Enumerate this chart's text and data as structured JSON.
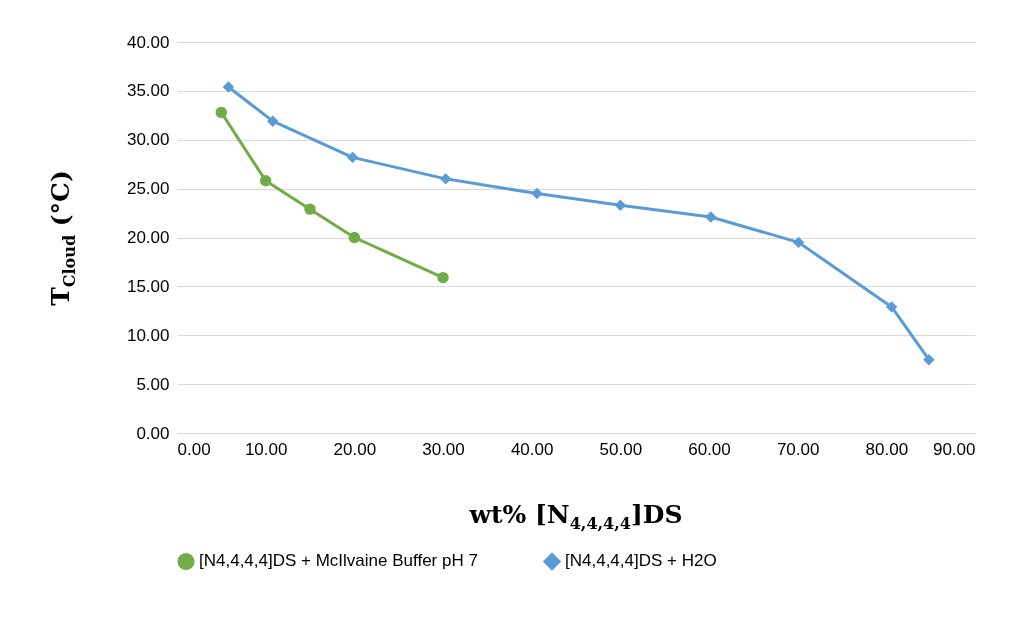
{
  "chart_data": {
    "type": "line",
    "xlabel": "wt% [N$_{4,4,4,4}$]DS",
    "ylabel": "T$_{Cloud}$  (°C)",
    "xlim": [
      0,
      90
    ],
    "ylim": [
      0,
      40
    ],
    "xticks": [
      {
        "value": 0,
        "label": "0.00"
      },
      {
        "value": 10,
        "label": "10.00"
      },
      {
        "value": 20,
        "label": "20.00"
      },
      {
        "value": 30,
        "label": "30.00"
      },
      {
        "value": 40,
        "label": "40.00"
      },
      {
        "value": 50,
        "label": "50.00"
      },
      {
        "value": 60,
        "label": "60.00"
      },
      {
        "value": 70,
        "label": "70.00"
      },
      {
        "value": 80,
        "label": "80.00"
      },
      {
        "value": 90,
        "label": "90.00"
      }
    ],
    "yticks": [
      {
        "value": 0,
        "label": "0.00"
      },
      {
        "value": 5,
        "label": "5.00"
      },
      {
        "value": 10,
        "label": "10.00"
      },
      {
        "value": 15,
        "label": "15.00"
      },
      {
        "value": 20,
        "label": "20.00"
      },
      {
        "value": 25,
        "label": "25.00"
      },
      {
        "value": 30,
        "label": "30.00"
      },
      {
        "value": 35,
        "label": "35.00"
      },
      {
        "value": 40,
        "label": "40.00"
      }
    ],
    "grid": "y",
    "legend": "bottom",
    "line_style": "solid",
    "series": [
      {
        "name": "[N4,4,4,4]DS + McIlvaine Buffer pH 7",
        "color": "#70ad47",
        "marker": "circle",
        "x": [
          5,
          10,
          15,
          20,
          30
        ],
        "values": [
          32.8,
          25.8,
          22.9,
          20.0,
          15.9
        ]
      },
      {
        "name": "[N4,4,4,4]DS + H2O",
        "color": "#5b9bd5",
        "marker": "diamond",
        "x": [
          5.8,
          10.8,
          19.8,
          30.3,
          40.6,
          50.0,
          60.2,
          70.1,
          80.6,
          84.8
        ],
        "values": [
          35.4,
          31.9,
          28.2,
          26.0,
          24.5,
          23.3,
          22.1,
          19.5,
          12.9,
          7.5
        ]
      }
    ]
  }
}
